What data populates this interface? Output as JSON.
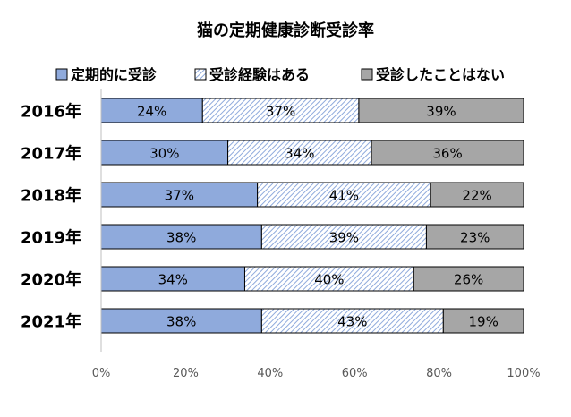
{
  "chart_data": {
    "type": "bar",
    "orientation": "horizontal",
    "stacked": "100%",
    "title": "猫の定期健康診断受診率",
    "categories": [
      "2016年",
      "2017年",
      "2018年",
      "2019年",
      "2020年",
      "2021年"
    ],
    "series": [
      {
        "name": "定期的に受診",
        "values": [
          24,
          30,
          37,
          38,
          34,
          38
        ],
        "color": "#8faadc",
        "pattern": "solid"
      },
      {
        "name": "受診経験はある",
        "values": [
          37,
          34,
          41,
          39,
          40,
          43
        ],
        "color": "#b4c7e7",
        "pattern": "diagonal-hatch"
      },
      {
        "name": "受診したことはない",
        "values": [
          39,
          36,
          22,
          23,
          26,
          19
        ],
        "color": "#a6a6a6",
        "pattern": "solid"
      }
    ],
    "data_label_suffix": "%",
    "x_ticks": [
      "0%",
      "20%",
      "40%",
      "60%",
      "80%",
      "100%"
    ],
    "xlim": [
      0,
      100
    ],
    "legend_position": "top",
    "grid": false
  }
}
